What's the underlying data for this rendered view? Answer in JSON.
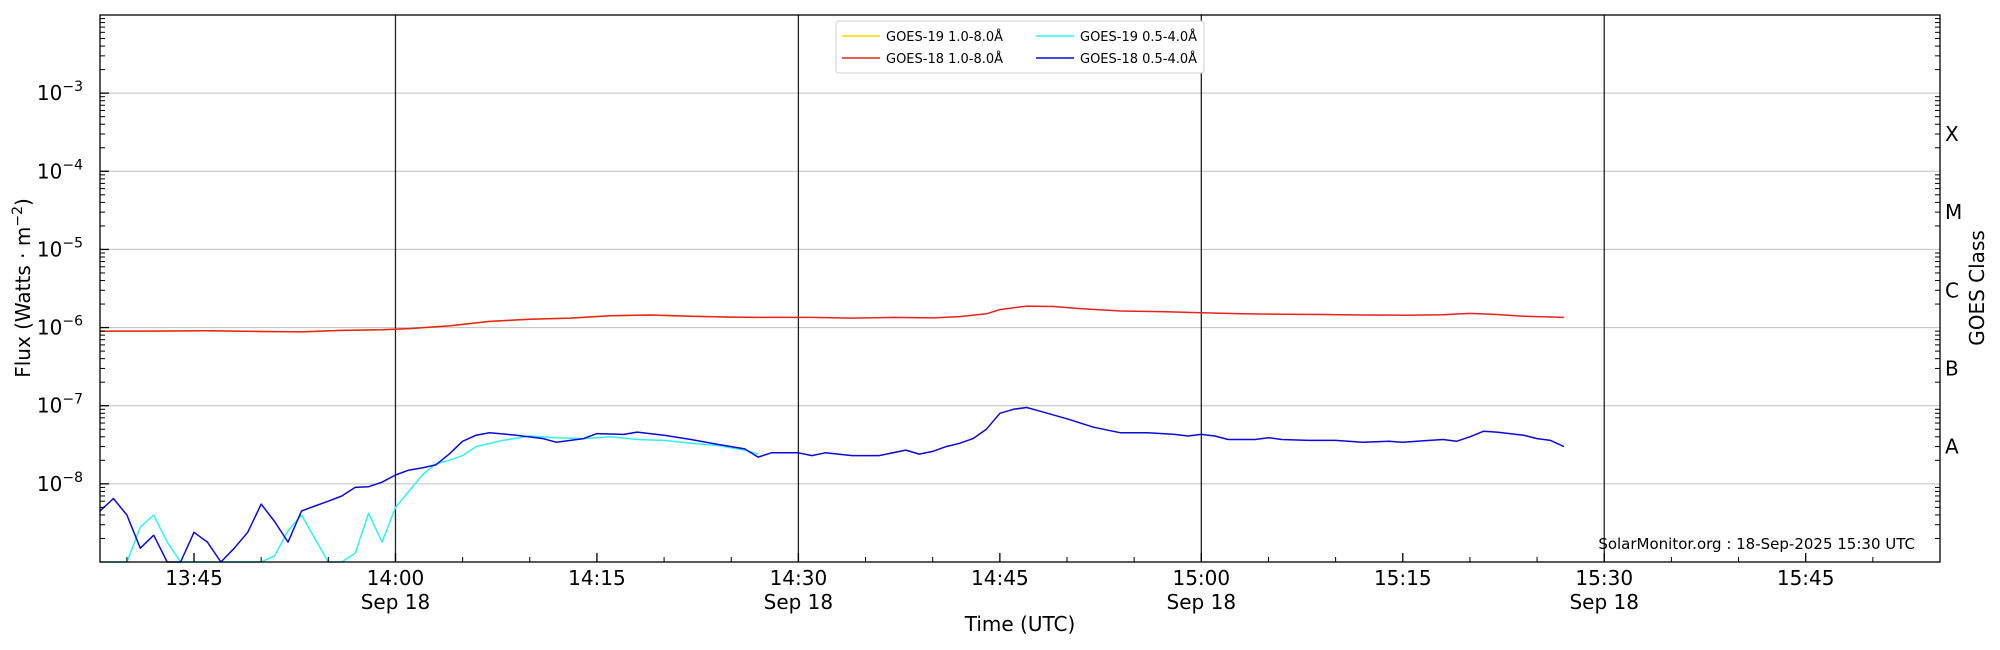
{
  "chart_data": {
    "type": "line",
    "xlabel": "Time (UTC)",
    "ylabel": "Flux (Watts · m",
    "ylabel_sup": "−2",
    "ylabel_close": ")",
    "y2label": "GOES Class",
    "yscale": "log",
    "xlim": [
      "13:38",
      "15:55"
    ],
    "ylim": [
      1e-09,
      0.01
    ],
    "x_ticks": [
      {
        "time": "13:45",
        "label": "13:45",
        "date": ""
      },
      {
        "time": "14:00",
        "label": "14:00",
        "date": "Sep 18"
      },
      {
        "time": "14:15",
        "label": "14:15",
        "date": ""
      },
      {
        "time": "14:30",
        "label": "14:30",
        "date": "Sep 18"
      },
      {
        "time": "14:45",
        "label": "14:45",
        "date": ""
      },
      {
        "time": "15:00",
        "label": "15:00",
        "date": "Sep 18"
      },
      {
        "time": "15:15",
        "label": "15:15",
        "date": ""
      },
      {
        "time": "15:30",
        "label": "15:30",
        "date": "Sep 18"
      },
      {
        "time": "15:45",
        "label": "15:45",
        "date": ""
      }
    ],
    "y_ticks": [
      {
        "value": 0.001,
        "base": "10",
        "exp": "−3"
      },
      {
        "value": 0.0001,
        "base": "10",
        "exp": "−4"
      },
      {
        "value": 1e-05,
        "base": "10",
        "exp": "−5"
      },
      {
        "value": 1e-06,
        "base": "10",
        "exp": "−6"
      },
      {
        "value": 1e-07,
        "base": "10",
        "exp": "−7"
      },
      {
        "value": 1e-08,
        "base": "10",
        "exp": "−8"
      }
    ],
    "class_labels": [
      {
        "label": "X",
        "value": 0.0003
      },
      {
        "label": "M",
        "value": 3e-05
      },
      {
        "label": "C",
        "value": 3e-06
      },
      {
        "label": "B",
        "value": 3e-07
      },
      {
        "label": "A",
        "value": 3e-08
      }
    ],
    "vlines": [
      "14:00",
      "14:30",
      "15:00",
      "15:30"
    ],
    "grid": "horizontal at decades",
    "legend": "top-center, 2 columns",
    "annotation": "SolarMonitor.org : 18-Sep-2025 15:30 UTC",
    "series": [
      {
        "name": "GOES-19 1.0-8.0Å",
        "color": "#ffd700",
        "points": [
          [
            "13:38",
            9e-07
          ],
          [
            "13:42",
            9e-07
          ],
          [
            "13:46",
            9.1e-07
          ],
          [
            "13:50",
            8.9e-07
          ],
          [
            "13:53",
            8.8e-07
          ],
          [
            "13:56",
            9.2e-07
          ],
          [
            "13:59",
            9.4e-07
          ],
          [
            "14:01",
            9.7e-07
          ],
          [
            "14:04",
            1.05e-06
          ],
          [
            "14:07",
            1.2e-06
          ],
          [
            "14:10",
            1.28e-06
          ],
          [
            "14:13",
            1.32e-06
          ],
          [
            "14:16",
            1.42e-06
          ],
          [
            "14:19",
            1.45e-06
          ],
          [
            "14:22",
            1.4e-06
          ],
          [
            "14:25",
            1.36e-06
          ],
          [
            "14:27",
            1.34e-06
          ]
        ]
      },
      {
        "name": "GOES-18 1.0-8.0Å",
        "color": "#e8231e",
        "points": [
          [
            "13:38",
            9e-07
          ],
          [
            "13:42",
            9e-07
          ],
          [
            "13:46",
            9.1e-07
          ],
          [
            "13:50",
            8.9e-07
          ],
          [
            "13:53",
            8.8e-07
          ],
          [
            "13:56",
            9.2e-07
          ],
          [
            "13:59",
            9.4e-07
          ],
          [
            "14:01",
            9.7e-07
          ],
          [
            "14:04",
            1.05e-06
          ],
          [
            "14:07",
            1.2e-06
          ],
          [
            "14:10",
            1.28e-06
          ],
          [
            "14:13",
            1.32e-06
          ],
          [
            "14:16",
            1.42e-06
          ],
          [
            "14:19",
            1.45e-06
          ],
          [
            "14:22",
            1.4e-06
          ],
          [
            "14:25",
            1.36e-06
          ],
          [
            "14:28",
            1.35e-06
          ],
          [
            "14:31",
            1.35e-06
          ],
          [
            "14:34",
            1.32e-06
          ],
          [
            "14:37",
            1.35e-06
          ],
          [
            "14:40",
            1.33e-06
          ],
          [
            "14:42",
            1.38e-06
          ],
          [
            "14:44",
            1.5e-06
          ],
          [
            "14:45",
            1.7e-06
          ],
          [
            "14:47",
            1.88e-06
          ],
          [
            "14:49",
            1.86e-06
          ],
          [
            "14:51",
            1.75e-06
          ],
          [
            "14:54",
            1.63e-06
          ],
          [
            "14:57",
            1.6e-06
          ],
          [
            "15:00",
            1.55e-06
          ],
          [
            "15:03",
            1.5e-06
          ],
          [
            "15:06",
            1.48e-06
          ],
          [
            "15:09",
            1.47e-06
          ],
          [
            "15:12",
            1.45e-06
          ],
          [
            "15:15",
            1.44e-06
          ],
          [
            "15:18",
            1.46e-06
          ],
          [
            "15:20",
            1.52e-06
          ],
          [
            "15:22",
            1.47e-06
          ],
          [
            "15:24",
            1.4e-06
          ],
          [
            "15:27",
            1.35e-06
          ]
        ]
      },
      {
        "name": "GOES-19 0.5-4.0Å",
        "color": "#2ef2f2",
        "points": [
          [
            "13:38",
            1e-09
          ],
          [
            "13:39",
            1e-09
          ],
          [
            "13:40",
            1e-09
          ],
          [
            "13:41",
            2.8e-09
          ],
          [
            "13:42",
            4e-09
          ],
          [
            "13:43",
            1.8e-09
          ],
          [
            "13:44",
            1e-09
          ],
          [
            "13:46",
            1e-09
          ],
          [
            "13:48",
            1e-09
          ],
          [
            "13:50",
            1e-09
          ],
          [
            "13:51",
            1.2e-09
          ],
          [
            "13:52",
            2.5e-09
          ],
          [
            "13:53",
            4e-09
          ],
          [
            "13:54",
            2e-09
          ],
          [
            "13:55",
            1e-09
          ],
          [
            "13:56",
            1e-09
          ],
          [
            "13:57",
            1.3e-09
          ],
          [
            "13:58",
            4.2e-09
          ],
          [
            "13:59",
            1.8e-09
          ],
          [
            "14:00",
            5e-09
          ],
          [
            "14:01",
            8e-09
          ],
          [
            "14:02",
            1.3e-08
          ],
          [
            "14:03",
            1.8e-08
          ],
          [
            "14:04",
            2e-08
          ],
          [
            "14:05",
            2.3e-08
          ],
          [
            "14:06",
            3e-08
          ],
          [
            "14:08",
            3.6e-08
          ],
          [
            "14:10",
            4.1e-08
          ],
          [
            "14:12",
            3.9e-08
          ],
          [
            "14:14",
            3.8e-08
          ],
          [
            "14:16",
            4e-08
          ],
          [
            "14:18",
            3.7e-08
          ],
          [
            "14:20",
            3.6e-08
          ],
          [
            "14:22",
            3.3e-08
          ],
          [
            "14:24",
            3.1e-08
          ],
          [
            "14:26",
            2.7e-08
          ],
          [
            "14:27",
            2.4e-08
          ]
        ]
      },
      {
        "name": "GOES-18 0.5-4.0Å",
        "color": "#0a0adb",
        "points": [
          [
            "13:38",
            4.5e-09
          ],
          [
            "13:39",
            6.5e-09
          ],
          [
            "13:40",
            4e-09
          ],
          [
            "13:41",
            1.5e-09
          ],
          [
            "13:42",
            2.2e-09
          ],
          [
            "13:43",
            1e-09
          ],
          [
            "13:44",
            1e-09
          ],
          [
            "13:45",
            2.4e-09
          ],
          [
            "13:46",
            1.8e-09
          ],
          [
            "13:47",
            1e-09
          ],
          [
            "13:48",
            1.5e-09
          ],
          [
            "13:49",
            2.4e-09
          ],
          [
            "13:50",
            5.5e-09
          ],
          [
            "13:51",
            3.3e-09
          ],
          [
            "13:52",
            1.8e-09
          ],
          [
            "13:53",
            4.5e-09
          ],
          [
            "13:54",
            5.2e-09
          ],
          [
            "13:55",
            6e-09
          ],
          [
            "13:56",
            7e-09
          ],
          [
            "13:57",
            9e-09
          ],
          [
            "13:58",
            9.2e-09
          ],
          [
            "13:59",
            1.05e-08
          ],
          [
            "14:00",
            1.3e-08
          ],
          [
            "14:01",
            1.5e-08
          ],
          [
            "14:02",
            1.6e-08
          ],
          [
            "14:03",
            1.75e-08
          ],
          [
            "14:04",
            2.4e-08
          ],
          [
            "14:05",
            3.5e-08
          ],
          [
            "14:06",
            4.2e-08
          ],
          [
            "14:07",
            4.5e-08
          ],
          [
            "14:09",
            4.2e-08
          ],
          [
            "14:11",
            3.8e-08
          ],
          [
            "14:12",
            3.4e-08
          ],
          [
            "14:14",
            3.8e-08
          ],
          [
            "14:15",
            4.4e-08
          ],
          [
            "14:17",
            4.3e-08
          ],
          [
            "14:18",
            4.6e-08
          ],
          [
            "14:20",
            4.2e-08
          ],
          [
            "14:22",
            3.7e-08
          ],
          [
            "14:24",
            3.2e-08
          ],
          [
            "14:26",
            2.8e-08
          ],
          [
            "14:27",
            2.2e-08
          ],
          [
            "14:28",
            2.5e-08
          ],
          [
            "14:30",
            2.5e-08
          ],
          [
            "14:31",
            2.3e-08
          ],
          [
            "14:32",
            2.5e-08
          ],
          [
            "14:34",
            2.3e-08
          ],
          [
            "14:36",
            2.3e-08
          ],
          [
            "14:38",
            2.7e-08
          ],
          [
            "14:39",
            2.4e-08
          ],
          [
            "14:40",
            2.6e-08
          ],
          [
            "14:41",
            3e-08
          ],
          [
            "14:42",
            3.3e-08
          ],
          [
            "14:43",
            3.8e-08
          ],
          [
            "14:44",
            5e-08
          ],
          [
            "14:45",
            8e-08
          ],
          [
            "14:46",
            9e-08
          ],
          [
            "14:47",
            9.5e-08
          ],
          [
            "14:48",
            8.5e-08
          ],
          [
            "14:50",
            6.8e-08
          ],
          [
            "14:52",
            5.3e-08
          ],
          [
            "14:54",
            4.5e-08
          ],
          [
            "14:56",
            4.5e-08
          ],
          [
            "14:58",
            4.3e-08
          ],
          [
            "14:59",
            4.1e-08
          ],
          [
            "15:00",
            4.3e-08
          ],
          [
            "15:01",
            4.1e-08
          ],
          [
            "15:02",
            3.7e-08
          ],
          [
            "15:04",
            3.7e-08
          ],
          [
            "15:05",
            3.9e-08
          ],
          [
            "15:06",
            3.7e-08
          ],
          [
            "15:08",
            3.6e-08
          ],
          [
            "15:10",
            3.6e-08
          ],
          [
            "15:12",
            3.4e-08
          ],
          [
            "15:14",
            3.5e-08
          ],
          [
            "15:15",
            3.4e-08
          ],
          [
            "15:17",
            3.6e-08
          ],
          [
            "15:18",
            3.7e-08
          ],
          [
            "15:19",
            3.5e-08
          ],
          [
            "15:20",
            4e-08
          ],
          [
            "15:21",
            4.7e-08
          ],
          [
            "15:22",
            4.6e-08
          ],
          [
            "15:24",
            4.2e-08
          ],
          [
            "15:25",
            3.8e-08
          ],
          [
            "15:26",
            3.6e-08
          ],
          [
            "15:27",
            3e-08
          ]
        ]
      }
    ]
  }
}
